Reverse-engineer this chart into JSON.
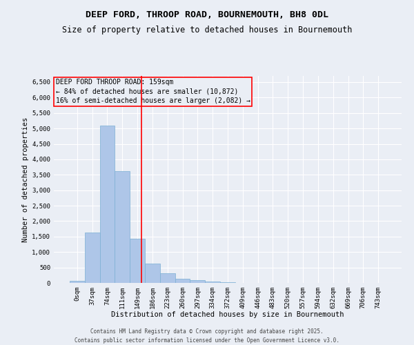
{
  "title": "DEEP FORD, THROOP ROAD, BOURNEMOUTH, BH8 0DL",
  "subtitle": "Size of property relative to detached houses in Bournemouth",
  "xlabel": "Distribution of detached houses by size in Bournemouth",
  "ylabel": "Number of detached properties",
  "footer_line1": "Contains HM Land Registry data © Crown copyright and database right 2025.",
  "footer_line2": "Contains public sector information licensed under the Open Government Licence v3.0.",
  "bin_labels": [
    "0sqm",
    "37sqm",
    "74sqm",
    "111sqm",
    "149sqm",
    "186sqm",
    "223sqm",
    "260sqm",
    "297sqm",
    "334sqm",
    "372sqm",
    "409sqm",
    "446sqm",
    "483sqm",
    "520sqm",
    "557sqm",
    "594sqm",
    "632sqm",
    "669sqm",
    "706sqm",
    "743sqm"
  ],
  "bar_values": [
    75,
    1640,
    5100,
    3620,
    1420,
    620,
    310,
    140,
    80,
    45,
    30,
    0,
    0,
    0,
    0,
    0,
    0,
    0,
    0,
    0,
    0
  ],
  "bar_color": "#aec6e8",
  "bar_edgecolor": "#7aafd4",
  "vline_x": 4.28,
  "vline_color": "red",
  "annotation_title": "DEEP FORD THROOP ROAD: 159sqm",
  "annotation_line1": "← 84% of detached houses are smaller (10,872)",
  "annotation_line2": "16% of semi-detached houses are larger (2,082) →",
  "annotation_box_color": "red",
  "ylim": [
    0,
    6700
  ],
  "yticks": [
    0,
    500,
    1000,
    1500,
    2000,
    2500,
    3000,
    3500,
    4000,
    4500,
    5000,
    5500,
    6000,
    6500
  ],
  "bg_color": "#eaeef5",
  "grid_color": "white",
  "title_fontsize": 9.5,
  "subtitle_fontsize": 8.5,
  "axis_label_fontsize": 7.5,
  "tick_fontsize": 6.5,
  "annotation_fontsize": 7,
  "footer_fontsize": 5.5
}
